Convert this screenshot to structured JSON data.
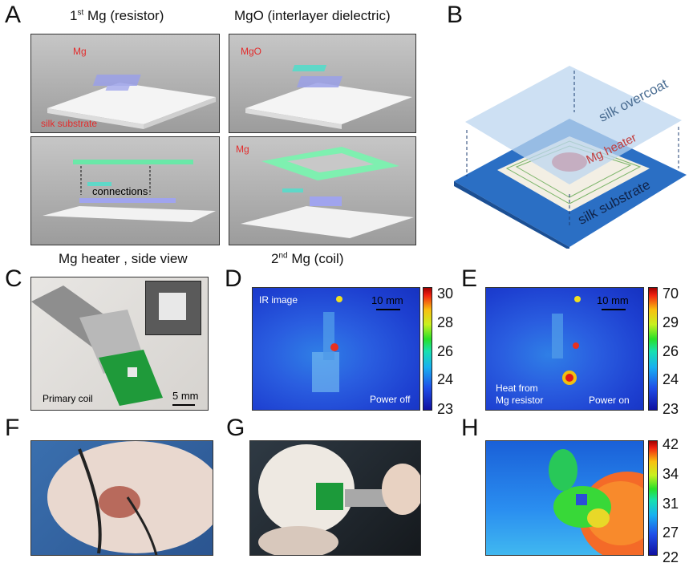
{
  "panel_labels": {
    "A": "A",
    "B": "B",
    "C": "C",
    "D": "D",
    "E": "E",
    "F": "F",
    "G": "G",
    "H": "H"
  },
  "panel_a": {
    "title_left_main": "Mg (resistor)",
    "title_left_sup": "st",
    "title_left_num": "1",
    "title_right": "MgO (interlayer dielectric)",
    "caption_left": "Mg heater , side view",
    "caption_right_num": "2",
    "caption_right_sup": "nd",
    "caption_right_main": "Mg (coil)",
    "tl_mg": "Mg",
    "tl_silk": "silk substrate",
    "tr_mgo": "MgO",
    "br_mg": "Mg",
    "bl_connections": "connections"
  },
  "panel_b": {
    "silk_overcoat": "silk overcoat",
    "mg_heater": "Mg heater",
    "silk_substrate": "silk substrate"
  },
  "panel_c": {
    "primary_coil": "Primary coil",
    "scale": "5 mm"
  },
  "panel_d": {
    "ir_image": "IR image",
    "scale": "10 mm",
    "power": "Power off",
    "colorbar_ticks": [
      "30",
      "28",
      "26",
      "24",
      "23"
    ]
  },
  "panel_e": {
    "scale": "10 mm",
    "heat_line1": "Heat from",
    "heat_line2": "Mg resistor",
    "power": "Power on",
    "colorbar_ticks": [
      "70",
      "29",
      "26",
      "24",
      "23"
    ]
  },
  "panel_h": {
    "colorbar_ticks": [
      "42",
      "34",
      "31",
      "27",
      "22"
    ]
  }
}
